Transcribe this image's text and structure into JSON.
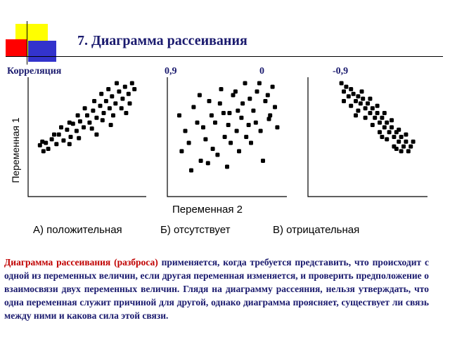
{
  "slide": {
    "title": "7. Диаграмма рассеивания",
    "correlation_label": "Корреляция",
    "y_axis_label": "Переменная 1",
    "x_axis_label": "Переменная 2",
    "description_highlight": "Диаграмма рассеивания (разброса)",
    "description_rest": " применяется, когда требуется представить, что происходит с одной из переменных величин, если другая переменная изменяется, и проверить предположение о взаимосвязи двух переменных величин. Глядя на диаграмму рассеяния, нельзя утверждать, что одна переменная служит причиной для другой, однако диаграмма проясняет, существует ли связь между ними и какова сила этой связи.",
    "colors": {
      "title": "#1a1a6e",
      "highlight": "#c00000",
      "deco_yellow": "#ffff00",
      "deco_red": "#ff0000",
      "deco_blue": "#3333cc"
    }
  },
  "chart_data": [
    {
      "type": "scatter",
      "correlation": "0,9",
      "caption": "А)  положительная",
      "points": [
        {
          "x": 0.1,
          "y": 0.43
        },
        {
          "x": 0.13,
          "y": 0.38
        },
        {
          "x": 0.12,
          "y": 0.46
        },
        {
          "x": 0.17,
          "y": 0.4
        },
        {
          "x": 0.2,
          "y": 0.48
        },
        {
          "x": 0.24,
          "y": 0.44
        },
        {
          "x": 0.26,
          "y": 0.52
        },
        {
          "x": 0.3,
          "y": 0.47
        },
        {
          "x": 0.33,
          "y": 0.56
        },
        {
          "x": 0.36,
          "y": 0.5
        },
        {
          "x": 0.38,
          "y": 0.61
        },
        {
          "x": 0.41,
          "y": 0.55
        },
        {
          "x": 0.44,
          "y": 0.63
        },
        {
          "x": 0.47,
          "y": 0.58
        },
        {
          "x": 0.5,
          "y": 0.68
        },
        {
          "x": 0.52,
          "y": 0.62
        },
        {
          "x": 0.55,
          "y": 0.72
        },
        {
          "x": 0.58,
          "y": 0.66
        },
        {
          "x": 0.61,
          "y": 0.76
        },
        {
          "x": 0.64,
          "y": 0.7
        },
        {
          "x": 0.66,
          "y": 0.8
        },
        {
          "x": 0.69,
          "y": 0.74
        },
        {
          "x": 0.71,
          "y": 0.84
        },
        {
          "x": 0.74,
          "y": 0.78
        },
        {
          "x": 0.77,
          "y": 0.88
        },
        {
          "x": 0.8,
          "y": 0.82
        },
        {
          "x": 0.82,
          "y": 0.92
        },
        {
          "x": 0.85,
          "y": 0.86
        },
        {
          "x": 0.88,
          "y": 0.95
        },
        {
          "x": 0.9,
          "y": 0.9
        },
        {
          "x": 0.15,
          "y": 0.45
        },
        {
          "x": 0.22,
          "y": 0.52
        },
        {
          "x": 0.28,
          "y": 0.58
        },
        {
          "x": 0.35,
          "y": 0.62
        },
        {
          "x": 0.42,
          "y": 0.68
        },
        {
          "x": 0.48,
          "y": 0.74
        },
        {
          "x": 0.56,
          "y": 0.8
        },
        {
          "x": 0.62,
          "y": 0.86
        },
        {
          "x": 0.68,
          "y": 0.9
        },
        {
          "x": 0.75,
          "y": 0.95
        },
        {
          "x": 0.43,
          "y": 0.49
        },
        {
          "x": 0.54,
          "y": 0.57
        },
        {
          "x": 0.63,
          "y": 0.64
        },
        {
          "x": 0.72,
          "y": 0.68
        },
        {
          "x": 0.79,
          "y": 0.74
        },
        {
          "x": 0.86,
          "y": 0.78
        },
        {
          "x": 0.58,
          "y": 0.52
        },
        {
          "x": 0.7,
          "y": 0.6
        },
        {
          "x": 0.83,
          "y": 0.7
        },
        {
          "x": 0.35,
          "y": 0.44
        }
      ]
    },
    {
      "type": "scatter",
      "correlation": "0",
      "caption": "Б) отсутствует",
      "points": [
        {
          "x": 0.1,
          "y": 0.68
        },
        {
          "x": 0.18,
          "y": 0.45
        },
        {
          "x": 0.22,
          "y": 0.75
        },
        {
          "x": 0.28,
          "y": 0.3
        },
        {
          "x": 0.3,
          "y": 0.58
        },
        {
          "x": 0.35,
          "y": 0.8
        },
        {
          "x": 0.38,
          "y": 0.4
        },
        {
          "x": 0.4,
          "y": 0.62
        },
        {
          "x": 0.45,
          "y": 0.9
        },
        {
          "x": 0.48,
          "y": 0.5
        },
        {
          "x": 0.5,
          "y": 0.25
        },
        {
          "x": 0.52,
          "y": 0.7
        },
        {
          "x": 0.55,
          "y": 0.85
        },
        {
          "x": 0.58,
          "y": 0.55
        },
        {
          "x": 0.6,
          "y": 0.38
        },
        {
          "x": 0.63,
          "y": 0.78
        },
        {
          "x": 0.65,
          "y": 0.95
        },
        {
          "x": 0.68,
          "y": 0.6
        },
        {
          "x": 0.7,
          "y": 0.45
        },
        {
          "x": 0.72,
          "y": 0.72
        },
        {
          "x": 0.75,
          "y": 0.88
        },
        {
          "x": 0.78,
          "y": 0.55
        },
        {
          "x": 0.8,
          "y": 0.3
        },
        {
          "x": 0.82,
          "y": 0.8
        },
        {
          "x": 0.85,
          "y": 0.65
        },
        {
          "x": 0.88,
          "y": 0.92
        },
        {
          "x": 0.9,
          "y": 0.75
        },
        {
          "x": 0.92,
          "y": 0.58
        },
        {
          "x": 0.15,
          "y": 0.55
        },
        {
          "x": 0.25,
          "y": 0.62
        },
        {
          "x": 0.32,
          "y": 0.48
        },
        {
          "x": 0.42,
          "y": 0.35
        },
        {
          "x": 0.47,
          "y": 0.7
        },
        {
          "x": 0.53,
          "y": 0.45
        },
        {
          "x": 0.57,
          "y": 0.88
        },
        {
          "x": 0.62,
          "y": 0.66
        },
        {
          "x": 0.66,
          "y": 0.5
        },
        {
          "x": 0.74,
          "y": 0.62
        },
        {
          "x": 0.77,
          "y": 0.95
        },
        {
          "x": 0.84,
          "y": 0.85
        },
        {
          "x": 0.12,
          "y": 0.38
        },
        {
          "x": 0.2,
          "y": 0.22
        },
        {
          "x": 0.27,
          "y": 0.85
        },
        {
          "x": 0.37,
          "y": 0.68
        },
        {
          "x": 0.44,
          "y": 0.78
        },
        {
          "x": 0.59,
          "y": 0.72
        },
        {
          "x": 0.69,
          "y": 0.82
        },
        {
          "x": 0.86,
          "y": 0.68
        },
        {
          "x": 0.34,
          "y": 0.28
        },
        {
          "x": 0.51,
          "y": 0.6
        }
      ]
    },
    {
      "type": "scatter",
      "correlation": "-0,9",
      "caption": "В) отрицательная",
      "points": [
        {
          "x": 0.28,
          "y": 0.95
        },
        {
          "x": 0.32,
          "y": 0.92
        },
        {
          "x": 0.3,
          "y": 0.88
        },
        {
          "x": 0.36,
          "y": 0.9
        },
        {
          "x": 0.34,
          "y": 0.84
        },
        {
          "x": 0.38,
          "y": 0.86
        },
        {
          "x": 0.4,
          "y": 0.8
        },
        {
          "x": 0.42,
          "y": 0.84
        },
        {
          "x": 0.44,
          "y": 0.78
        },
        {
          "x": 0.46,
          "y": 0.82
        },
        {
          "x": 0.48,
          "y": 0.74
        },
        {
          "x": 0.5,
          "y": 0.78
        },
        {
          "x": 0.52,
          "y": 0.7
        },
        {
          "x": 0.54,
          "y": 0.74
        },
        {
          "x": 0.56,
          "y": 0.66
        },
        {
          "x": 0.58,
          "y": 0.7
        },
        {
          "x": 0.6,
          "y": 0.62
        },
        {
          "x": 0.62,
          "y": 0.66
        },
        {
          "x": 0.64,
          "y": 0.58
        },
        {
          "x": 0.66,
          "y": 0.62
        },
        {
          "x": 0.68,
          "y": 0.54
        },
        {
          "x": 0.7,
          "y": 0.58
        },
        {
          "x": 0.72,
          "y": 0.5
        },
        {
          "x": 0.74,
          "y": 0.54
        },
        {
          "x": 0.76,
          "y": 0.46
        },
        {
          "x": 0.78,
          "y": 0.5
        },
        {
          "x": 0.8,
          "y": 0.42
        },
        {
          "x": 0.82,
          "y": 0.46
        },
        {
          "x": 0.84,
          "y": 0.38
        },
        {
          "x": 0.86,
          "y": 0.42
        },
        {
          "x": 0.3,
          "y": 0.8
        },
        {
          "x": 0.36,
          "y": 0.76
        },
        {
          "x": 0.42,
          "y": 0.72
        },
        {
          "x": 0.48,
          "y": 0.66
        },
        {
          "x": 0.54,
          "y": 0.6
        },
        {
          "x": 0.6,
          "y": 0.54
        },
        {
          "x": 0.66,
          "y": 0.48
        },
        {
          "x": 0.72,
          "y": 0.42
        },
        {
          "x": 0.78,
          "y": 0.38
        },
        {
          "x": 0.88,
          "y": 0.46
        },
        {
          "x": 0.45,
          "y": 0.88
        },
        {
          "x": 0.52,
          "y": 0.82
        },
        {
          "x": 0.58,
          "y": 0.76
        },
        {
          "x": 0.64,
          "y": 0.7
        },
        {
          "x": 0.7,
          "y": 0.64
        },
        {
          "x": 0.76,
          "y": 0.56
        },
        {
          "x": 0.82,
          "y": 0.52
        },
        {
          "x": 0.4,
          "y": 0.68
        },
        {
          "x": 0.62,
          "y": 0.5
        },
        {
          "x": 0.74,
          "y": 0.4
        }
      ]
    }
  ]
}
